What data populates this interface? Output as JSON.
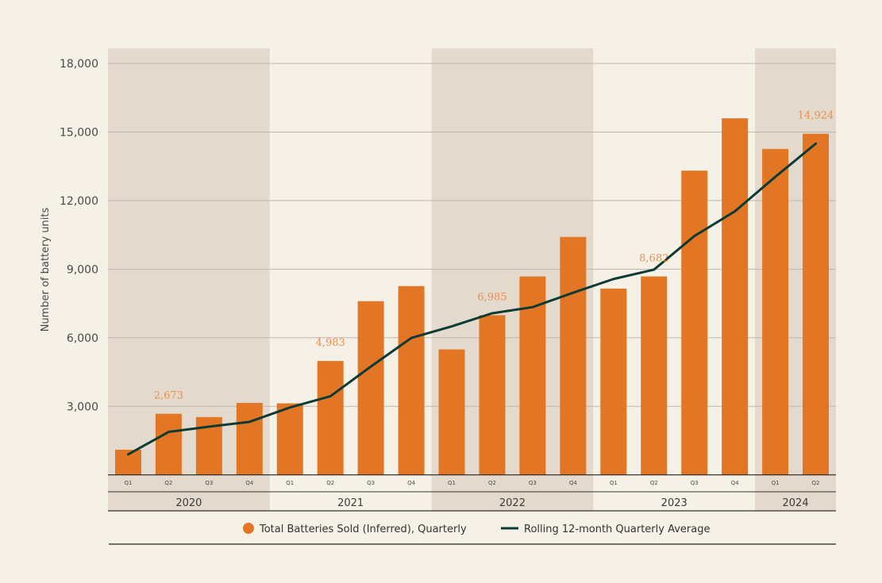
{
  "chart_data": {
    "type": "bar",
    "title": "",
    "xlabel": "",
    "ylabel": "Number of battery units",
    "ylim": [
      0,
      18000
    ],
    "yticks": [
      3000,
      6000,
      9000,
      12000,
      15000,
      18000
    ],
    "ytick_labels": [
      "3,000",
      "6,000",
      "9,000",
      "12,000",
      "15,000",
      "18,000"
    ],
    "grid": true,
    "years": [
      {
        "label": "2020",
        "quarters": 4,
        "shaded": true
      },
      {
        "label": "2021",
        "quarters": 4,
        "shaded": false
      },
      {
        "label": "2022",
        "quarters": 4,
        "shaded": true
      },
      {
        "label": "2023",
        "quarters": 4,
        "shaded": false
      },
      {
        "label": "2024",
        "quarters": 2,
        "shaded": true
      }
    ],
    "categories": [
      "Q1",
      "Q2",
      "Q3",
      "Q4",
      "Q1",
      "Q2",
      "Q3",
      "Q4",
      "Q1",
      "Q2",
      "Q3",
      "Q4",
      "Q1",
      "Q2",
      "Q3",
      "Q4",
      "Q1",
      "Q2"
    ],
    "series": [
      {
        "name": "Total Batteries Sold (Inferred), Quarterly",
        "type": "bar",
        "color": "#e27625",
        "values": [
          1100,
          2673,
          2530,
          3150,
          3130,
          4983,
          7600,
          8260,
          5490,
          6985,
          8680,
          10410,
          8150,
          8682,
          13310,
          15600,
          14260,
          14924
        ]
      },
      {
        "name": "Rolling 12-month Quarterly Average",
        "type": "line",
        "color": "#0d3b34",
        "values": [
          900,
          1880,
          2110,
          2320,
          2950,
          3440,
          4740,
          5990,
          6500,
          7070,
          7340,
          7970,
          8570,
          8980,
          10450,
          11530,
          13040,
          14490
        ]
      }
    ],
    "data_labels": [
      {
        "index": 1,
        "text": "2,673"
      },
      {
        "index": 5,
        "text": "4,983"
      },
      {
        "index": 9,
        "text": "6,985"
      },
      {
        "index": 13,
        "text": "8,682"
      },
      {
        "index": 17,
        "text": "14,924"
      }
    ],
    "legend_position": "bottom",
    "colors": {
      "background": "#f6f1e7",
      "band": "#e3dacd",
      "grid": "#bdb6ad",
      "bar": "#e27625",
      "line": "#0d3b34",
      "data_label": "#ea8f4c"
    }
  }
}
